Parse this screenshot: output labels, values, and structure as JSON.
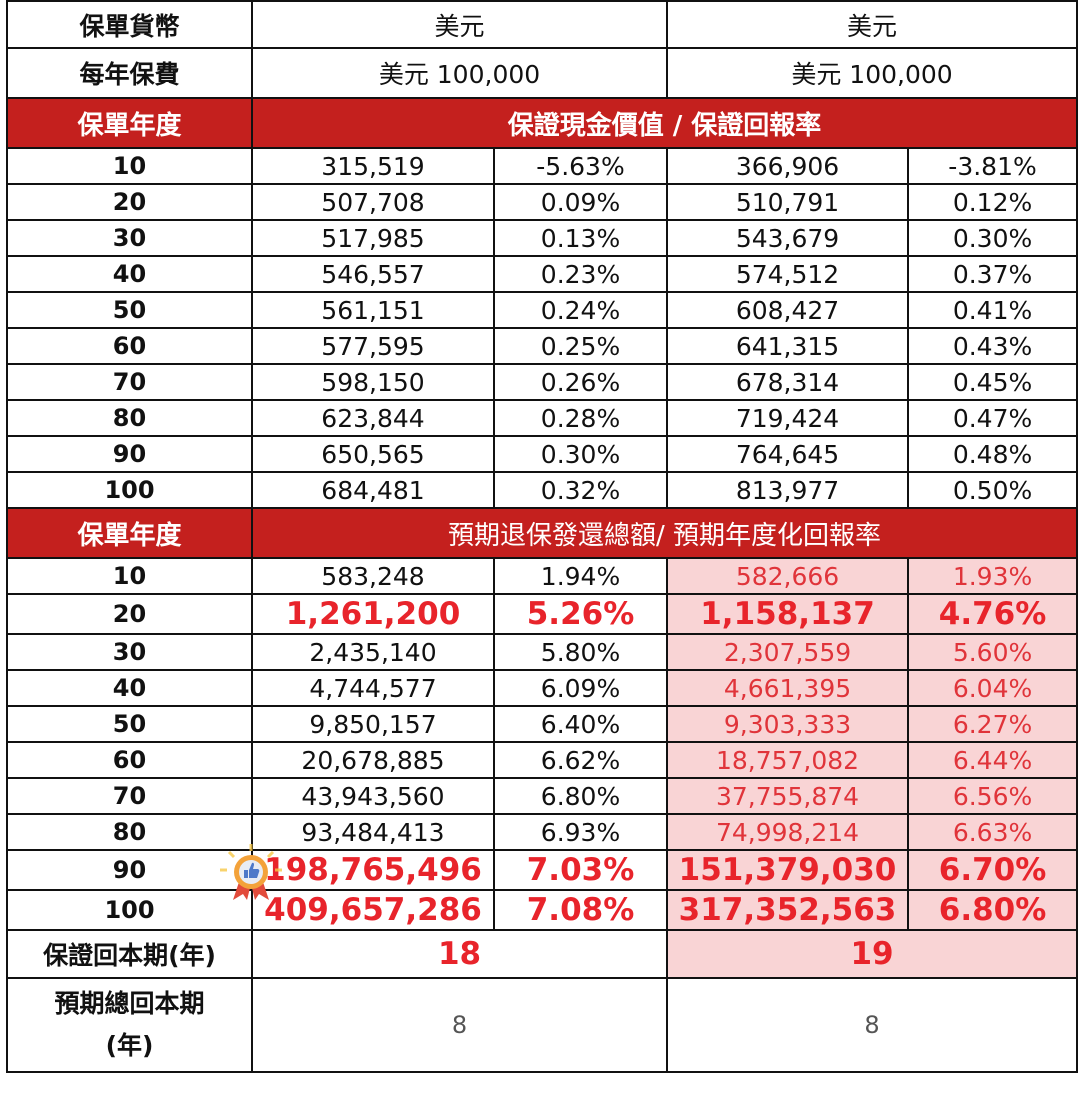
{
  "header": {
    "currency_label": "保單貨幣",
    "currency_a": "美元",
    "currency_b": "美元",
    "premium_label": "每年保費",
    "premium_a": "美元 100,000",
    "premium_b": "美元 100,000"
  },
  "guaranteed": {
    "year_label": "保單年度",
    "title": "保證現金價值 / 保證回報率",
    "rows": [
      {
        "year": "10",
        "a_value": "315,519",
        "a_rate": "-5.63%",
        "b_value": "366,906",
        "b_rate": "-3.81%"
      },
      {
        "year": "20",
        "a_value": "507,708",
        "a_rate": "0.09%",
        "b_value": "510,791",
        "b_rate": "0.12%"
      },
      {
        "year": "30",
        "a_value": "517,985",
        "a_rate": "0.13%",
        "b_value": "543,679",
        "b_rate": "0.30%"
      },
      {
        "year": "40",
        "a_value": "546,557",
        "a_rate": "0.23%",
        "b_value": "574,512",
        "b_rate": "0.37%"
      },
      {
        "year": "50",
        "a_value": "561,151",
        "a_rate": "0.24%",
        "b_value": "608,427",
        "b_rate": "0.41%"
      },
      {
        "year": "60",
        "a_value": "577,595",
        "a_rate": "0.25%",
        "b_value": "641,315",
        "b_rate": "0.43%"
      },
      {
        "year": "70",
        "a_value": "598,150",
        "a_rate": "0.26%",
        "b_value": "678,314",
        "b_rate": "0.45%"
      },
      {
        "year": "80",
        "a_value": "623,844",
        "a_rate": "0.28%",
        "b_value": "719,424",
        "b_rate": "0.47%"
      },
      {
        "year": "90",
        "a_value": "650,565",
        "a_rate": "0.30%",
        "b_value": "764,645",
        "b_rate": "0.48%"
      },
      {
        "year": "100",
        "a_value": "684,481",
        "a_rate": "0.32%",
        "b_value": "813,977",
        "b_rate": "0.50%"
      }
    ]
  },
  "expected": {
    "year_label": "保單年度",
    "title": "預期退保發還總額/ 預期年度化回報率",
    "rows": [
      {
        "year": "10",
        "a_value": "583,248",
        "a_rate": "1.94%",
        "b_value": "582,666",
        "b_rate": "1.93%"
      },
      {
        "year": "20",
        "a_value": "1,261,200",
        "a_rate": "5.26%",
        "b_value": "1,158,137",
        "b_rate": "4.76%"
      },
      {
        "year": "30",
        "a_value": "2,435,140",
        "a_rate": "5.80%",
        "b_value": "2,307,559",
        "b_rate": "5.60%"
      },
      {
        "year": "40",
        "a_value": "4,744,577",
        "a_rate": "6.09%",
        "b_value": "4,661,395",
        "b_rate": "6.04%"
      },
      {
        "year": "50",
        "a_value": "9,850,157",
        "a_rate": "6.40%",
        "b_value": "9,303,333",
        "b_rate": "6.27%"
      },
      {
        "year": "60",
        "a_value": "20,678,885",
        "a_rate": "6.62%",
        "b_value": "18,757,082",
        "b_rate": "6.44%"
      },
      {
        "year": "70",
        "a_value": "43,943,560",
        "a_rate": "6.80%",
        "b_value": "37,755,874",
        "b_rate": "6.56%"
      },
      {
        "year": "80",
        "a_value": "93,484,413",
        "a_rate": "6.93%",
        "b_value": "74,998,214",
        "b_rate": "6.63%"
      },
      {
        "year": "90",
        "a_value": "198,765,496",
        "a_rate": "7.03%",
        "b_value": "151,379,030",
        "b_rate": "6.70%"
      },
      {
        "year": "100",
        "a_value": "409,657,286",
        "a_rate": "7.08%",
        "b_value": "317,352,563",
        "b_rate": "6.80%"
      }
    ]
  },
  "footer": {
    "breakeven_label": "保證回本期(年)",
    "breakeven_a": "18",
    "breakeven_b": "19",
    "total_breakeven_label_line1": "預期總回本期",
    "total_breakeven_label_line2": "(年)",
    "total_breakeven_a": "8",
    "total_breakeven_b": "8"
  },
  "icons": {
    "medal": "medal-thumbs-up-icon"
  },
  "colors": {
    "header_red": "#c4201e",
    "highlight_red": "#e8242b",
    "pink_bg": "#f9d4d5"
  }
}
